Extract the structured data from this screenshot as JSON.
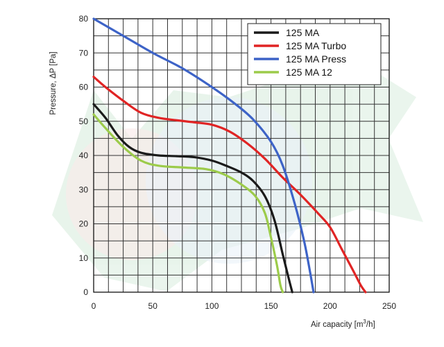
{
  "chart_data": {
    "type": "line",
    "title": "",
    "xlabel": "Air capacity [m",
    "xlabel_sup": "3",
    "xlabel_end": "/h]",
    "ylabel": "Pressure, ΔP [Pa]",
    "xlim": [
      0,
      250
    ],
    "ylim": [
      0,
      80
    ],
    "x_ticks": [
      "0",
      "50",
      "100",
      "150",
      "200",
      "250"
    ],
    "y_ticks": [
      "0",
      "10",
      "20",
      "30",
      "40",
      "50",
      "60",
      "70",
      "80"
    ],
    "x_grid_step": 12.5,
    "y_grid_step": 5,
    "grid": true,
    "legend_position": "top-right",
    "series": [
      {
        "name": "125 MA",
        "color": "#1a1a1a",
        "points": [
          [
            0,
            55
          ],
          [
            10,
            51
          ],
          [
            20,
            46
          ],
          [
            30,
            42.5
          ],
          [
            40,
            40.8
          ],
          [
            55,
            40
          ],
          [
            70,
            39.8
          ],
          [
            85,
            39.5
          ],
          [
            100,
            38.5
          ],
          [
            112,
            37
          ],
          [
            125,
            35
          ],
          [
            135,
            32.5
          ],
          [
            145,
            28
          ],
          [
            153,
            21
          ],
          [
            160,
            11
          ],
          [
            165,
            4
          ],
          [
            168,
            0
          ]
        ]
      },
      {
        "name": "125 MA Turbo",
        "color": "#e02424",
        "points": [
          [
            0,
            63
          ],
          [
            10,
            60
          ],
          [
            25,
            56
          ],
          [
            40,
            52.5
          ],
          [
            55,
            51
          ],
          [
            70,
            50.3
          ],
          [
            85,
            49.7
          ],
          [
            100,
            49
          ],
          [
            115,
            47
          ],
          [
            130,
            43.5
          ],
          [
            145,
            39
          ],
          [
            160,
            33.5
          ],
          [
            175,
            28.5
          ],
          [
            190,
            23
          ],
          [
            200,
            19
          ],
          [
            210,
            12.5
          ],
          [
            220,
            6
          ],
          [
            226,
            2
          ],
          [
            230,
            0
          ]
        ]
      },
      {
        "name": "125 MA Press",
        "color": "#3d63c7",
        "points": [
          [
            0,
            80
          ],
          [
            25,
            75
          ],
          [
            50,
            70
          ],
          [
            75,
            65.5
          ],
          [
            100,
            60
          ],
          [
            120,
            55
          ],
          [
            135,
            50.5
          ],
          [
            150,
            44
          ],
          [
            160,
            37
          ],
          [
            170,
            26
          ],
          [
            178,
            15
          ],
          [
            183,
            6
          ],
          [
            186,
            0
          ]
        ]
      },
      {
        "name": "125 MA 12",
        "color": "#9ccb4a",
        "points": [
          [
            0,
            52
          ],
          [
            10,
            48
          ],
          [
            25,
            42.5
          ],
          [
            40,
            38.5
          ],
          [
            55,
            37
          ],
          [
            75,
            36.5
          ],
          [
            95,
            36
          ],
          [
            110,
            34.5
          ],
          [
            125,
            31.5
          ],
          [
            137,
            28
          ],
          [
            145,
            23
          ],
          [
            150,
            16
          ],
          [
            155,
            8
          ],
          [
            158,
            2
          ],
          [
            160,
            0
          ]
        ]
      }
    ]
  }
}
